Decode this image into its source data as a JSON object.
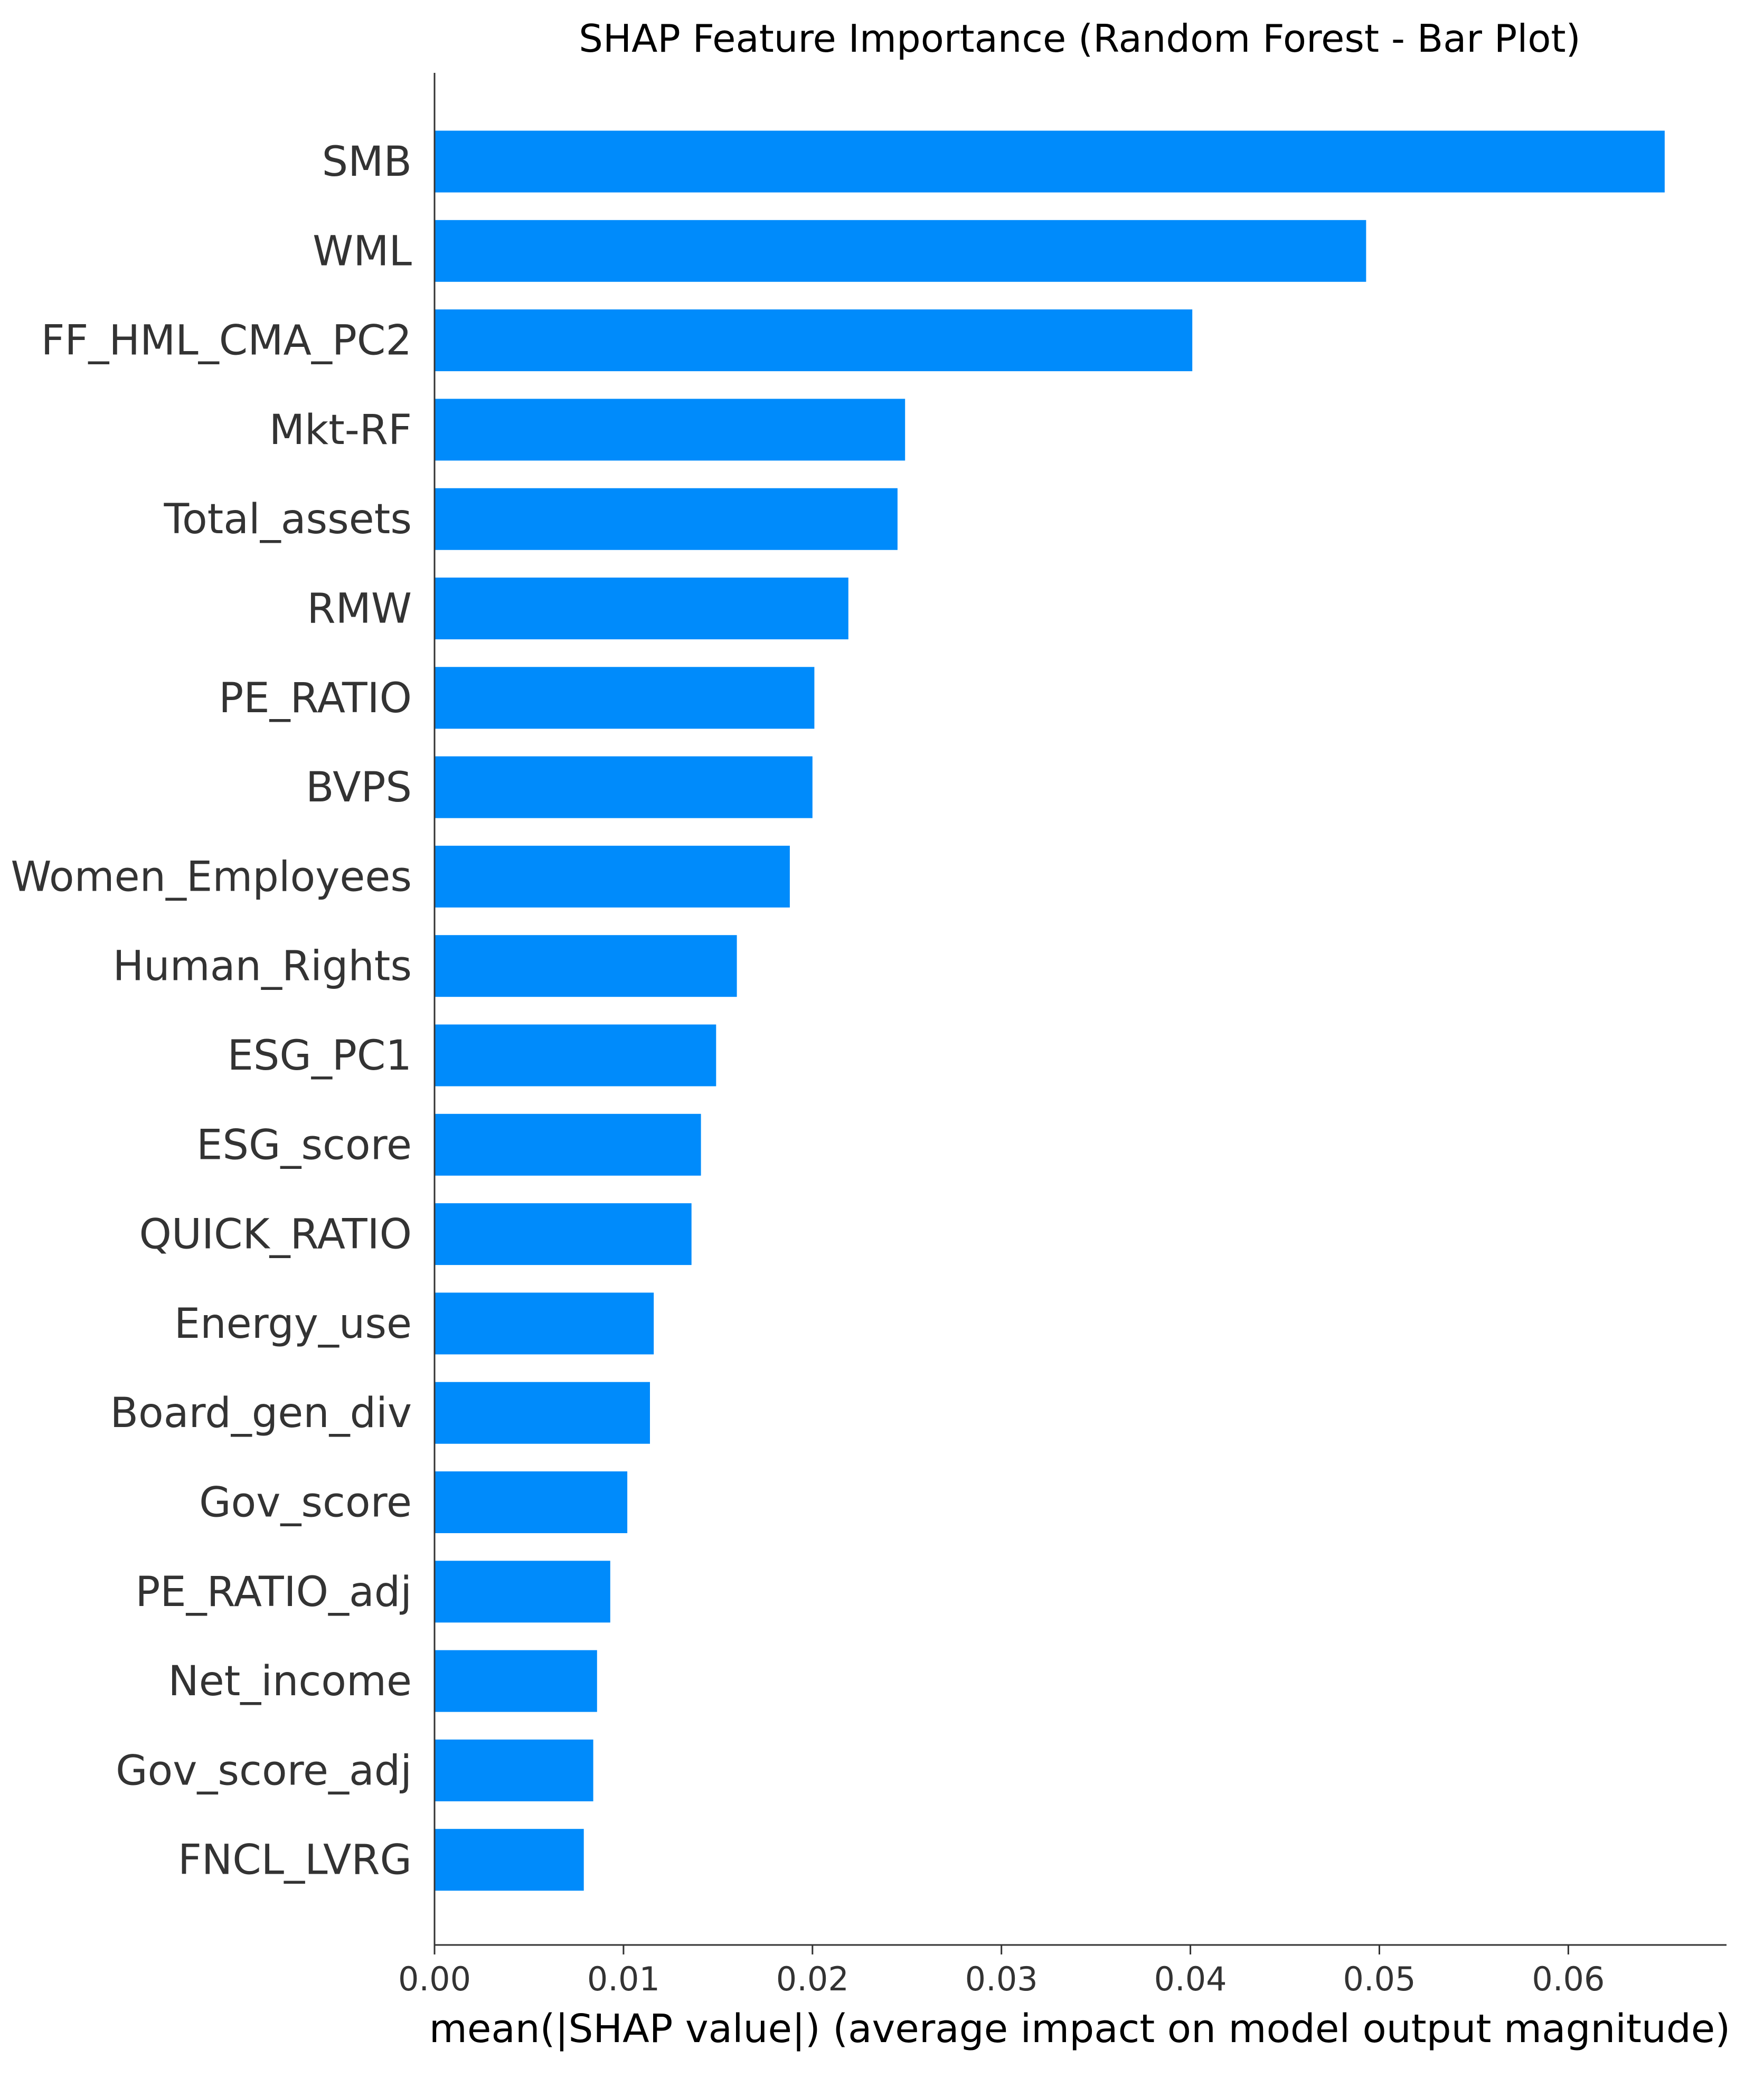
{
  "chart_data": {
    "type": "bar",
    "orientation": "horizontal",
    "title": "SHAP Feature Importance (Random Forest - Bar Plot)",
    "xlabel": "mean(|SHAP value|) (average impact on model output magnitude)",
    "ylabel": "",
    "xlim": [
      0,
      0.0685
    ],
    "xticks": [
      0.0,
      0.01,
      0.02,
      0.03,
      0.04,
      0.05,
      0.06
    ],
    "xtick_labels": [
      "0.00",
      "0.01",
      "0.02",
      "0.03",
      "0.04",
      "0.05",
      "0.06"
    ],
    "grid": false,
    "bar_color": "#008bfb",
    "categories": [
      "SMB",
      "WML",
      "FF_HML_CMA_PC2",
      "Mkt-RF",
      "Total_assets",
      "RMW",
      "PE_RATIO",
      "BVPS",
      "Women_Employees",
      "Human_Rights",
      "ESG_PC1",
      "ESG_score",
      "QUICK_RATIO",
      "Energy_use",
      "Board_gen_div",
      "Gov_score",
      "PE_RATIO_adj",
      "Net_income",
      "Gov_score_adj",
      "FNCL_LVRG"
    ],
    "values": [
      0.0651,
      0.0493,
      0.0401,
      0.0249,
      0.0245,
      0.0219,
      0.0201,
      0.02,
      0.0188,
      0.016,
      0.0149,
      0.0141,
      0.0136,
      0.0116,
      0.0114,
      0.0102,
      0.0093,
      0.0086,
      0.0084,
      0.0079
    ]
  }
}
